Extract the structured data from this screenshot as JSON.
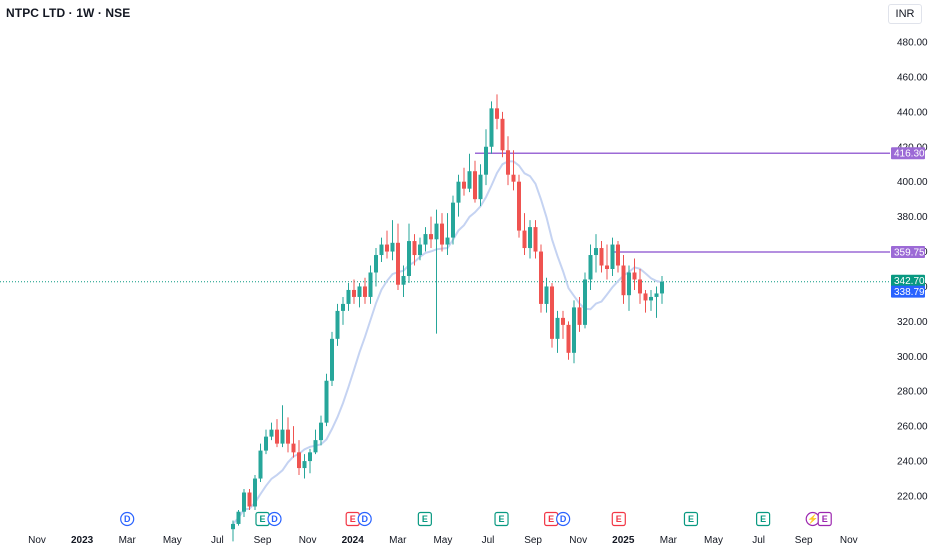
{
  "header": {
    "title": "NTPC LTD · 1W · NSE",
    "currency": "INR"
  },
  "colors": {
    "up": "#26a69a",
    "down": "#ef5350",
    "ma": "#c5d3f2",
    "level": "#9c6ad6",
    "last_price": "#089981",
    "ma_label": "#2962ff"
  },
  "chart_data": {
    "type": "candlestick",
    "interval": "1W",
    "ylim": [
      205,
      490
    ],
    "y_ticks": [
      "480.00",
      "460.00",
      "440.00",
      "420.00",
      "400.00",
      "380.00",
      "360.00",
      "340.00",
      "320.00",
      "300.00",
      "280.00",
      "260.00",
      "240.00",
      "220.00"
    ],
    "x_ticks": [
      "Nov",
      "2023",
      "Mar",
      "May",
      "Jul",
      "Sep",
      "Nov",
      "2024",
      "Mar",
      "May",
      "Jul",
      "Sep",
      "Nov",
      "2025",
      "Mar",
      "May",
      "Jul",
      "Sep",
      "Nov"
    ],
    "candles": [
      [
        201,
        206,
        194,
        204
      ],
      [
        204,
        212,
        203,
        211
      ],
      [
        211,
        224,
        208,
        222
      ],
      [
        222,
        224,
        212,
        214
      ],
      [
        214,
        232,
        212,
        230
      ],
      [
        230,
        250,
        228,
        246
      ],
      [
        246,
        258,
        244,
        254
      ],
      [
        254,
        262,
        252,
        258
      ],
      [
        258,
        264,
        248,
        250
      ],
      [
        250,
        272,
        248,
        258
      ],
      [
        258,
        265,
        245,
        250
      ],
      [
        250,
        260,
        242,
        245
      ],
      [
        245,
        252,
        232,
        236
      ],
      [
        236,
        244,
        230,
        240
      ],
      [
        240,
        247,
        233,
        245
      ],
      [
        245,
        258,
        244,
        252
      ],
      [
        252,
        266,
        249,
        262
      ],
      [
        262,
        290,
        260,
        286
      ],
      [
        286,
        314,
        283,
        310
      ],
      [
        310,
        330,
        306,
        326
      ],
      [
        326,
        334,
        318,
        330
      ],
      [
        330,
        342,
        326,
        338
      ],
      [
        338,
        344,
        330,
        334
      ],
      [
        334,
        342,
        328,
        340
      ],
      [
        340,
        345,
        330,
        334
      ],
      [
        334,
        352,
        330,
        348
      ],
      [
        348,
        362,
        340,
        358
      ],
      [
        358,
        368,
        354,
        364
      ],
      [
        364,
        372,
        356,
        360
      ],
      [
        360,
        378,
        355,
        365
      ],
      [
        365,
        376,
        338,
        341
      ],
      [
        341,
        352,
        334,
        346
      ],
      [
        346,
        376,
        342,
        366
      ],
      [
        366,
        370,
        352,
        358
      ],
      [
        358,
        368,
        355,
        364
      ],
      [
        364,
        374,
        360,
        370
      ],
      [
        370,
        380,
        362,
        367
      ],
      [
        367,
        384,
        313,
        376
      ],
      [
        376,
        382,
        360,
        364
      ],
      [
        364,
        382,
        358,
        368
      ],
      [
        368,
        392,
        364,
        388
      ],
      [
        388,
        404,
        380,
        400
      ],
      [
        400,
        408,
        392,
        396
      ],
      [
        396,
        416,
        394,
        406
      ],
      [
        406,
        412,
        388,
        390
      ],
      [
        390,
        410,
        386,
        404
      ],
      [
        404,
        430,
        398,
        420
      ],
      [
        420,
        446,
        416,
        442
      ],
      [
        442,
        450,
        430,
        436
      ],
      [
        436,
        440,
        414,
        418
      ],
      [
        418,
        426,
        398,
        404
      ],
      [
        404,
        418,
        395,
        400
      ],
      [
        400,
        404,
        368,
        372
      ],
      [
        372,
        382,
        358,
        362
      ],
      [
        362,
        378,
        356,
        374
      ],
      [
        374,
        378,
        356,
        360
      ],
      [
        360,
        364,
        325,
        330
      ],
      [
        330,
        345,
        325,
        340
      ],
      [
        340,
        342,
        305,
        310
      ],
      [
        310,
        326,
        302,
        322
      ],
      [
        322,
        326,
        310,
        318
      ],
      [
        318,
        320,
        298,
        302
      ],
      [
        302,
        332,
        296,
        328
      ],
      [
        328,
        334,
        314,
        318
      ],
      [
        318,
        348,
        316,
        344
      ],
      [
        344,
        364,
        338,
        358
      ],
      [
        358,
        370,
        348,
        362
      ],
      [
        362,
        366,
        348,
        352
      ],
      [
        352,
        364,
        344,
        350
      ],
      [
        350,
        368,
        346,
        364
      ],
      [
        364,
        366,
        348,
        352
      ],
      [
        352,
        358,
        330,
        335
      ],
      [
        335,
        352,
        326,
        348
      ],
      [
        348,
        356,
        338,
        344
      ],
      [
        344,
        350,
        330,
        336
      ],
      [
        336,
        338,
        325,
        332
      ],
      [
        332,
        338,
        326,
        334
      ],
      [
        334,
        340,
        322,
        336
      ],
      [
        336,
        346,
        330,
        342.7
      ]
    ],
    "moving_average": {
      "last": 338.79
    },
    "levels": [
      {
        "price": 416.3,
        "label": "416.30"
      },
      {
        "price": 359.75,
        "label": "359.75"
      }
    ],
    "last_price": {
      "value": 342.7,
      "label": "342.70"
    },
    "ma_label": "338.79",
    "events": [
      {
        "tick": 2,
        "letters": [
          "D"
        ],
        "kind": "dividend"
      },
      {
        "tick": 5,
        "letters": [
          "E",
          "D"
        ],
        "kind": "earnings-up"
      },
      {
        "tick": 7,
        "letters": [
          "E",
          "D"
        ],
        "kind": "earnings-down"
      },
      {
        "tick": 8.6,
        "letters": [
          "E"
        ],
        "kind": "earnings-up"
      },
      {
        "tick": 10.3,
        "letters": [
          "E"
        ],
        "kind": "earnings-up"
      },
      {
        "tick": 11.4,
        "letters": [
          "E",
          "D"
        ],
        "kind": "earnings-down"
      },
      {
        "tick": 12.9,
        "letters": [
          "E"
        ],
        "kind": "earnings-down"
      },
      {
        "tick": 14.5,
        "letters": [
          "E"
        ],
        "kind": "earnings-up"
      },
      {
        "tick": 16.1,
        "letters": [
          "E"
        ],
        "kind": "earnings-up"
      },
      {
        "tick": 17.2,
        "letters": [
          "⚡",
          "E"
        ],
        "kind": "split"
      }
    ]
  }
}
